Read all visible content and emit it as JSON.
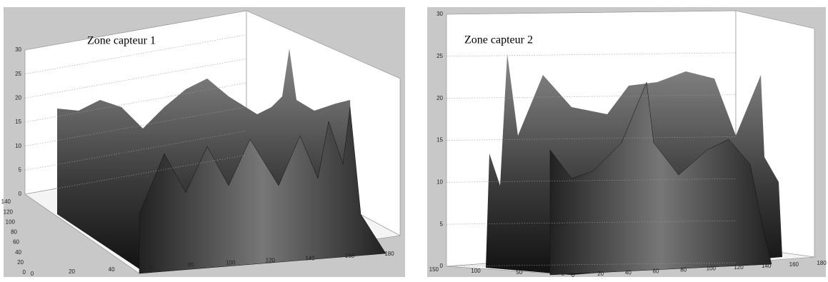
{
  "chart_data": [
    {
      "type": "surface",
      "annotation": "Zone capteur 1",
      "zlim": [
        0,
        30
      ],
      "zticks": [
        0,
        5,
        10,
        15,
        20,
        25,
        30
      ],
      "ylim": [
        0,
        140
      ],
      "yticks": [
        0,
        20,
        40,
        60,
        80,
        100,
        120,
        140
      ],
      "xlim": [
        0,
        180
      ],
      "xticks": [
        0,
        20,
        40,
        60,
        80,
        100,
        120,
        140,
        160,
        180
      ],
      "grid": true
    },
    {
      "type": "surface",
      "annotation": "Zone capteur 2",
      "zlim": [
        0,
        30
      ],
      "zticks": [
        0,
        5,
        10,
        15,
        20,
        25,
        30
      ],
      "ylim": [
        0,
        150
      ],
      "yticks": [
        0,
        50,
        100,
        150
      ],
      "xlim": [
        0,
        180
      ],
      "xticks": [
        0,
        20,
        40,
        60,
        80,
        100,
        120,
        140,
        160,
        180
      ],
      "grid": true
    }
  ]
}
